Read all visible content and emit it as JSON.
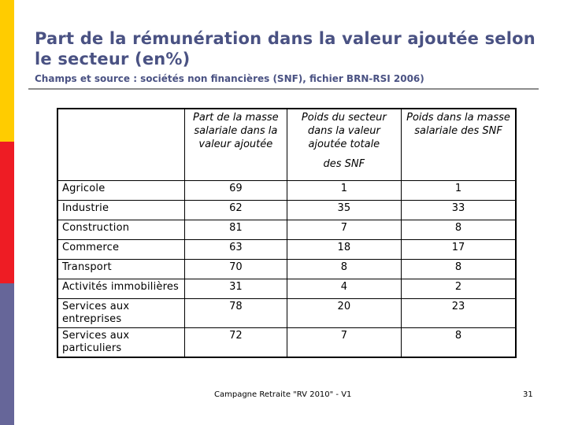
{
  "title": "Part de la rémunération dans la valeur ajoutée selon le secteur (en%)",
  "subtitle": "Champs et source : sociétés non financières (SNF), fichier BRN-RSI 2006)",
  "table": {
    "headers": [
      "",
      "Part de la masse salariale dans la valeur ajoutée",
      "Poids du secteur dans la valeur ajoutée totale",
      "Poids dans la masse salariale des SNF"
    ],
    "header_note": "des SNF",
    "rows": [
      {
        "sector": "Agricole",
        "part": "69",
        "poids_va": "1",
        "poids_ms": "1"
      },
      {
        "sector": "Industrie",
        "part": "62",
        "poids_va": "35",
        "poids_ms": "33"
      },
      {
        "sector": "Construction",
        "part": "81",
        "poids_va": "7",
        "poids_ms": "8"
      },
      {
        "sector": "Commerce",
        "part": "63",
        "poids_va": "18",
        "poids_ms": "17"
      },
      {
        "sector": "Transport",
        "part": "70",
        "poids_va": "8",
        "poids_ms": "8"
      },
      {
        "sector": "Activités immobilières",
        "part": "31",
        "poids_va": "4",
        "poids_ms": "2"
      },
      {
        "sector": "Services aux entreprises",
        "part": "78",
        "poids_va": "20",
        "poids_ms": "23"
      },
      {
        "sector": "Services aux particuliers",
        "part": "72",
        "poids_va": "7",
        "poids_ms": "8"
      }
    ]
  },
  "footer": "Campagne Retraite \"RV 2010\" - V1",
  "page_number": "31",
  "colors": {
    "title": "#4a5283",
    "stripe_top": "#ffcc00",
    "stripe_middle": "#ee1c24",
    "stripe_bottom": "#666699"
  }
}
